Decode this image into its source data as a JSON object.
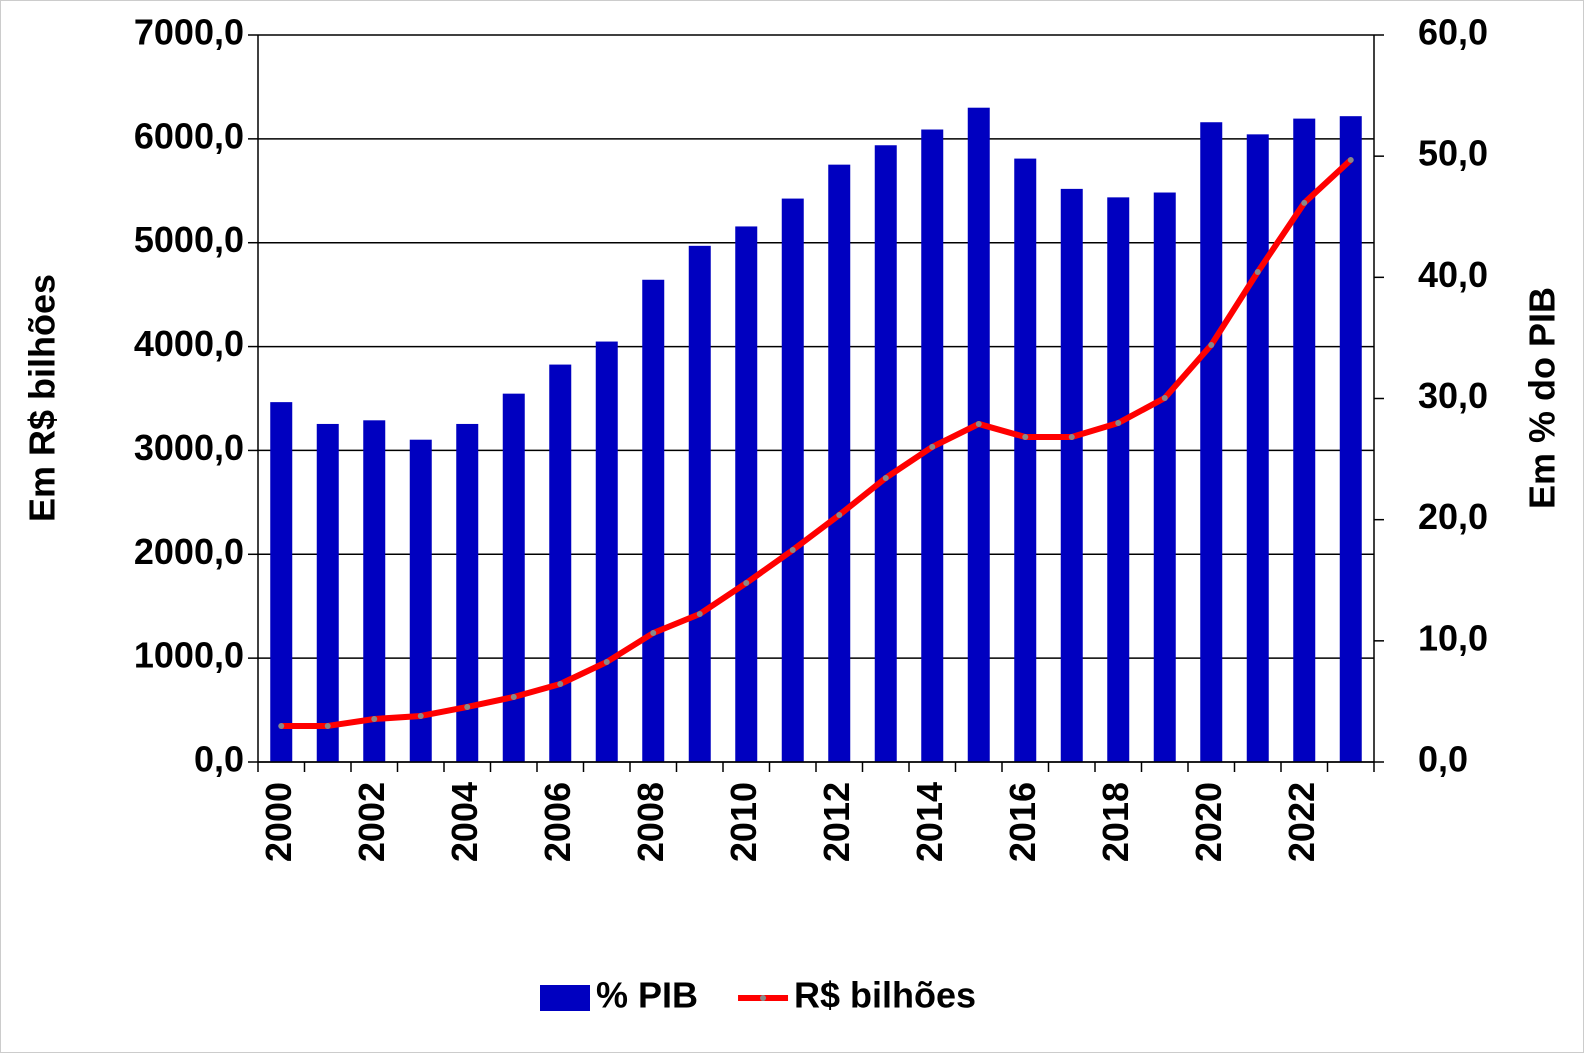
{
  "chart_data": {
    "type": "bar-line",
    "categories": [
      "2000",
      null,
      "2002",
      null,
      "2004",
      null,
      "2006",
      null,
      "2008",
      null,
      "2010",
      null,
      "2012",
      null,
      "2014",
      null,
      "2016",
      null,
      "2018",
      null,
      "2020",
      null,
      "2022",
      null
    ],
    "series": [
      {
        "name": "% PIB",
        "type": "bar",
        "axis": "y2",
        "color": "#0000c0",
        "values": [
          29.7,
          27.9,
          28.2,
          26.6,
          27.9,
          30.4,
          32.8,
          34.7,
          39.8,
          42.6,
          44.2,
          46.5,
          49.3,
          50.9,
          52.2,
          54.0,
          49.8,
          47.3,
          46.6,
          47.0,
          52.8,
          51.8,
          53.1,
          53.3
        ]
      },
      {
        "name": "R$ bilhões",
        "type": "line",
        "color": "#ff0000",
        "values": [
          347,
          347,
          414,
          443,
          530,
          626,
          751,
          963,
          1242,
          1425,
          1723,
          2041,
          2378,
          2735,
          3034,
          3255,
          3129,
          3129,
          3264,
          3505,
          4015,
          4718,
          5383,
          5797
        ]
      }
    ],
    "y_label": "Em R$ bilhões",
    "y2_label": "Em % do PIB",
    "ylim": [
      0,
      7000
    ],
    "yticks": [
      {
        "value": 0,
        "label": "0,0"
      },
      {
        "value": 1000,
        "label": "1000,0"
      },
      {
        "value": 2000,
        "label": "2000,0"
      },
      {
        "value": 3000,
        "label": "3000,0"
      },
      {
        "value": 4000,
        "label": "4000,0"
      },
      {
        "value": 5000,
        "label": "5000,0"
      },
      {
        "value": 6000,
        "label": "6000,0"
      },
      {
        "value": 7000,
        "label": "7000,0"
      }
    ],
    "y2lim": [
      0,
      60
    ],
    "y2ticks": [
      {
        "value": 0,
        "label": "0,0"
      },
      {
        "value": 10,
        "label": "10,0"
      },
      {
        "value": 20,
        "label": "20,0"
      },
      {
        "value": 30,
        "label": "30,0"
      },
      {
        "value": 40,
        "label": "40,0"
      },
      {
        "value": 50,
        "label": "50,0"
      },
      {
        "value": 60,
        "label": "60,0"
      }
    ],
    "grid": true,
    "legend": "bottom"
  }
}
